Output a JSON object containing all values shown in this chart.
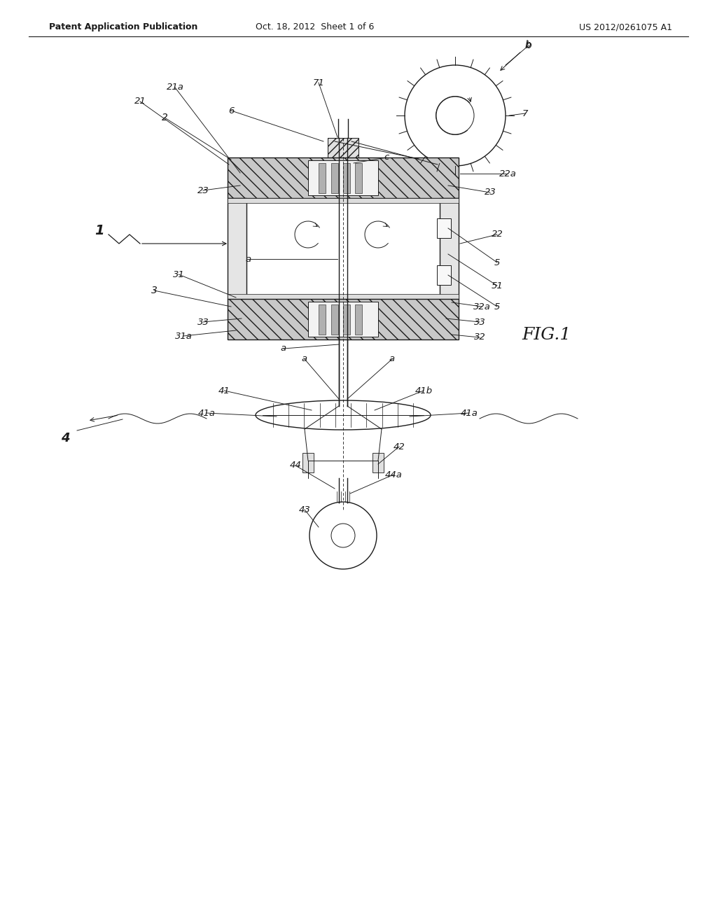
{
  "bg_color": "#ffffff",
  "header_left": "Patent Application Publication",
  "header_mid": "Oct. 18, 2012  Sheet 1 of 6",
  "header_right": "US 2012/0261075 A1",
  "fig_label": "FIG.1",
  "line_color": "#1a1a1a"
}
